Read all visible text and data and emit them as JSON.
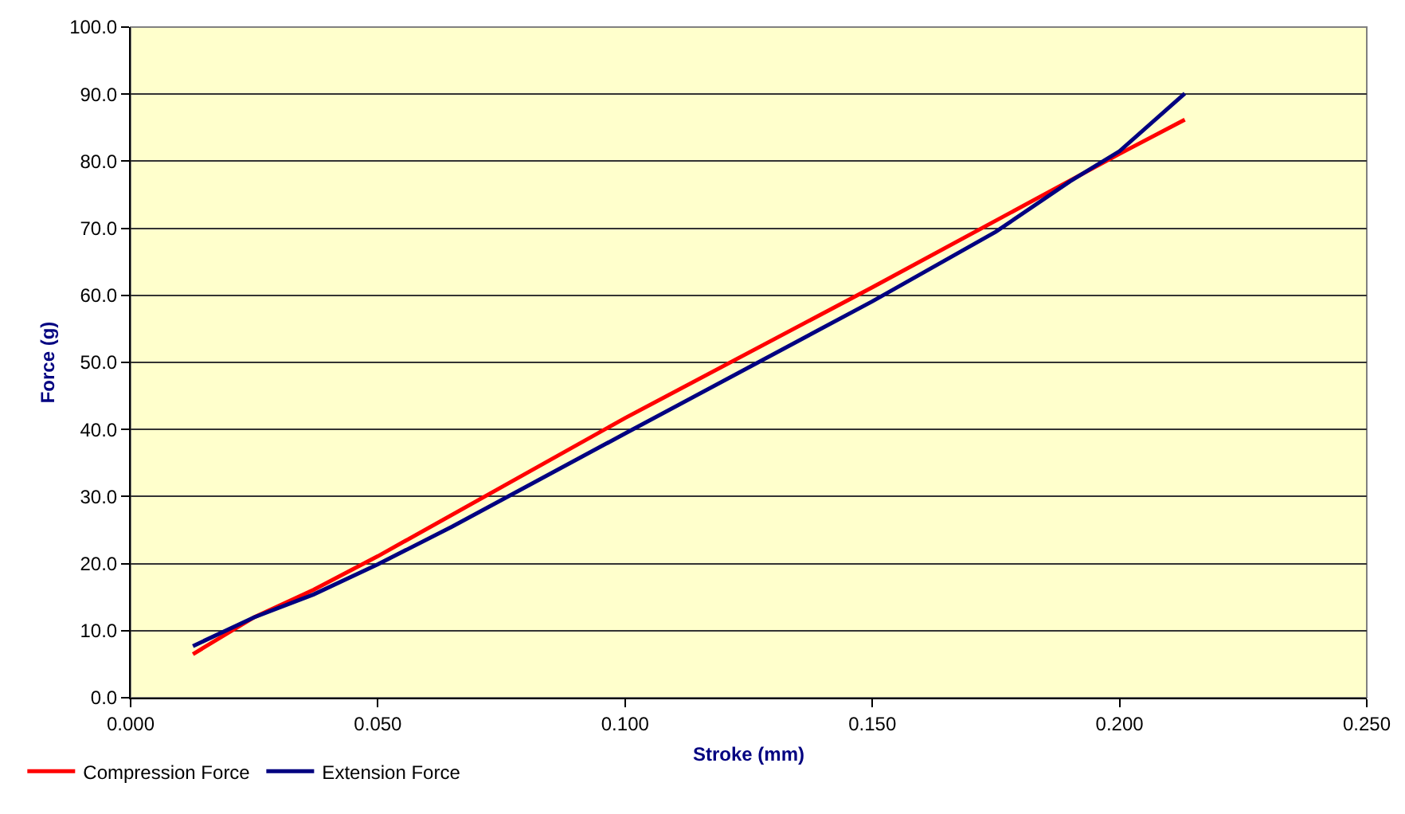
{
  "chart_data": {
    "type": "line",
    "xlabel": "Stroke (mm)",
    "ylabel": "Force (g)",
    "xlim": [
      0,
      0.25
    ],
    "xticks": [
      {
        "value": 0,
        "label": "0.000"
      },
      {
        "value": 0.05,
        "label": "0.050"
      },
      {
        "value": 0.1,
        "label": "0.100"
      },
      {
        "value": 0.15,
        "label": "0.150"
      },
      {
        "value": 0.2,
        "label": "0.200"
      },
      {
        "value": 0.25,
        "label": "0.250"
      }
    ],
    "ylim": [
      0,
      100
    ],
    "yticks": [
      {
        "value": 0,
        "label": "0.0"
      },
      {
        "value": 10,
        "label": "10.0"
      },
      {
        "value": 20,
        "label": "20.0"
      },
      {
        "value": 30,
        "label": "30.0"
      },
      {
        "value": 40,
        "label": "40.0"
      },
      {
        "value": 50,
        "label": "50.0"
      },
      {
        "value": 60,
        "label": "60.0"
      },
      {
        "value": 70,
        "label": "70.0"
      },
      {
        "value": 80,
        "label": "80.0"
      },
      {
        "value": 90,
        "label": "90.0"
      },
      {
        "value": 100,
        "label": "100.0"
      }
    ],
    "grid": "y",
    "legend": "bottom left",
    "marker": "none",
    "line_style": "solid",
    "series": [
      {
        "name": "Compression Force",
        "color": "#ff0000",
        "x": [
          0.0126,
          0.025,
          0.037,
          0.05,
          0.1,
          0.15,
          0.2,
          0.2132
        ],
        "values": [
          6.5,
          12.0,
          16.1,
          21.1,
          41.7,
          61.2,
          81.1,
          86.2
        ]
      },
      {
        "name": "Extension Force",
        "color": "#000080",
        "x": [
          0.0126,
          0.025,
          0.037,
          0.05,
          0.065,
          0.1,
          0.15,
          0.175,
          0.19,
          0.2,
          0.2132
        ],
        "values": [
          7.7,
          12.0,
          15.4,
          19.9,
          25.5,
          39.4,
          59.1,
          69.5,
          77.0,
          81.5,
          90.1
        ]
      }
    ]
  }
}
